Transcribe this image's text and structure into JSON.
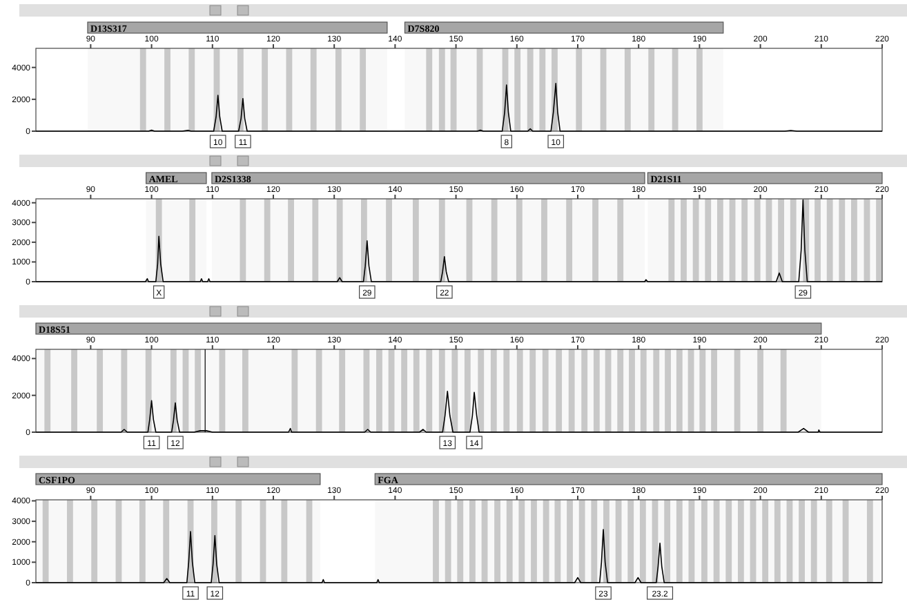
{
  "chart_data": [
    {
      "type": "line",
      "xlim": [
        81,
        220
      ],
      "xticks": [
        90,
        100,
        110,
        120,
        130,
        140,
        150,
        160,
        170,
        180,
        190,
        200,
        210,
        220
      ],
      "ylim": [
        0,
        5200
      ],
      "yticks": [
        0,
        2000,
        4000
      ],
      "grid": false,
      "marker": "none",
      "line_style": "solid",
      "series": [
        {
          "color": "#000000",
          "x": [
            81,
            88,
            99.5,
            100,
            100.5,
            105,
            106,
            106.5,
            110.2,
            110.6,
            110.9,
            111.2,
            111.6,
            114.3,
            114.7,
            115.0,
            115.3,
            115.7,
            125,
            140,
            153.5,
            154,
            154.5,
            157.6,
            158,
            158.3,
            158.6,
            159,
            161.8,
            162.2,
            162.6,
            165.6,
            166,
            166.4,
            166.7,
            167.1,
            204,
            205,
            206,
            220
          ],
          "values": [
            0,
            0,
            0,
            60,
            0,
            0,
            50,
            0,
            0,
            900,
            2250,
            900,
            0,
            0,
            800,
            2050,
            800,
            0,
            0,
            0,
            0,
            60,
            0,
            0,
            1200,
            2900,
            1200,
            0,
            0,
            150,
            0,
            0,
            1200,
            3000,
            1200,
            0,
            0,
            40,
            0,
            0
          ]
        }
      ],
      "bands": [
        {
          "axis": "x",
          "from": 89.5,
          "to": 138.7,
          "label": "D13S317",
          "color": "#a6a6a6"
        },
        {
          "axis": "x",
          "from": 141.6,
          "to": 193.9,
          "label": "D7S820",
          "color": "#a6a6a6"
        },
        {
          "axis": "x",
          "from": 98.1,
          "to": 99.1,
          "color": "#c8c8c8"
        },
        {
          "axis": "x",
          "from": 102.1,
          "to": 103.1,
          "color": "#c8c8c8"
        },
        {
          "axis": "x",
          "from": 106.1,
          "to": 107.1,
          "color": "#c8c8c8"
        },
        {
          "axis": "x",
          "from": 110.2,
          "to": 111.2,
          "color": "#c8c8c8"
        },
        {
          "axis": "x",
          "from": 114.1,
          "to": 115.1,
          "color": "#c8c8c8"
        },
        {
          "axis": "x",
          "from": 118.1,
          "to": 119.1,
          "color": "#c8c8c8"
        },
        {
          "axis": "x",
          "from": 122.1,
          "to": 123.1,
          "color": "#c8c8c8"
        },
        {
          "axis": "x",
          "from": 126.1,
          "to": 127.1,
          "color": "#c8c8c8"
        },
        {
          "axis": "x",
          "from": 130.2,
          "to": 131.2,
          "color": "#c8c8c8"
        },
        {
          "axis": "x",
          "from": 134.2,
          "to": 135.2,
          "color": "#c8c8c8"
        },
        {
          "axis": "x",
          "from": 145.1,
          "to": 146.1,
          "color": "#c8c8c8"
        },
        {
          "axis": "x",
          "from": 147.2,
          "to": 148.2,
          "color": "#c8c8c8"
        },
        {
          "axis": "x",
          "from": 149.1,
          "to": 150.1,
          "color": "#c8c8c8"
        },
        {
          "axis": "x",
          "from": 153.4,
          "to": 154.4,
          "color": "#c8c8c8"
        },
        {
          "axis": "x",
          "from": 157.6,
          "to": 158.6,
          "color": "#c8c8c8"
        },
        {
          "axis": "x",
          "from": 159.6,
          "to": 160.6,
          "color": "#c8c8c8"
        },
        {
          "axis": "x",
          "from": 161.7,
          "to": 162.7,
          "color": "#c8c8c8"
        },
        {
          "axis": "x",
          "from": 163.7,
          "to": 164.7,
          "color": "#c8c8c8"
        },
        {
          "axis": "x",
          "from": 165.7,
          "to": 166.7,
          "color": "#c8c8c8"
        },
        {
          "axis": "x",
          "from": 169.7,
          "to": 170.7,
          "color": "#c8c8c8"
        },
        {
          "axis": "x",
          "from": 173.7,
          "to": 174.7,
          "color": "#c8c8c8"
        },
        {
          "axis": "x",
          "from": 177.7,
          "to": 178.7,
          "color": "#c8c8c8"
        },
        {
          "axis": "x",
          "from": 181.6,
          "to": 182.6,
          "color": "#c8c8c8"
        },
        {
          "axis": "x",
          "from": 185.5,
          "to": 186.5,
          "color": "#c8c8c8"
        },
        {
          "axis": "x",
          "from": 189.5,
          "to": 190.5,
          "color": "#c8c8c8"
        }
      ],
      "annotations": [
        {
          "text": "10",
          "x": 110.9,
          "y": 0
        },
        {
          "text": "11",
          "x": 115.0,
          "y": 0
        },
        {
          "text": "8",
          "x": 158.3,
          "y": 0
        },
        {
          "text": "10",
          "x": 166.4,
          "y": 0
        }
      ]
    },
    {
      "type": "line",
      "xlim": [
        81,
        220
      ],
      "xticks": [
        90,
        100,
        110,
        120,
        130,
        140,
        150,
        160,
        170,
        180,
        190,
        200,
        210,
        220
      ],
      "ylim": [
        0,
        4200
      ],
      "yticks": [
        0,
        1000,
        2000,
        3000,
        4000
      ],
      "grid": false,
      "marker": "none",
      "line_style": "solid",
      "series": [
        {
          "color": "#000000",
          "x": [
            81,
            99,
            99.3,
            99.5,
            100.7,
            101.0,
            101.2,
            101.5,
            101.9,
            108,
            108.2,
            108.4,
            109.2,
            109.4,
            109.6,
            130.5,
            130.9,
            131.3,
            134.8,
            135.1,
            135.4,
            135.7,
            136.1,
            147.5,
            147.8,
            148.1,
            148.4,
            148.8,
            181,
            181.2,
            181.5,
            202.6,
            203.1,
            203.6,
            206.3,
            206.7,
            207,
            207.3,
            207.7,
            220
          ],
          "values": [
            0,
            0,
            150,
            0,
            0,
            900,
            2300,
            900,
            0,
            0,
            150,
            0,
            0,
            150,
            0,
            0,
            200,
            0,
            0,
            800,
            2070,
            800,
            0,
            0,
            500,
            1270,
            500,
            0,
            0,
            100,
            0,
            0,
            440,
            0,
            0,
            1600,
            4150,
            1600,
            0,
            0
          ]
        }
      ],
      "bands": [
        {
          "axis": "x",
          "from": 99.1,
          "to": 109,
          "label": "AMEL",
          "color": "#a6a6a6"
        },
        {
          "axis": "x",
          "from": 109.9,
          "to": 181,
          "label": "D2S1338",
          "color": "#a6a6a6"
        },
        {
          "axis": "x",
          "from": 181.5,
          "to": 220,
          "label": "D21S11",
          "color": "#a6a6a6"
        },
        {
          "axis": "x",
          "from": 100.7,
          "to": 101.7,
          "color": "#c8c8c8"
        },
        {
          "axis": "x",
          "from": 106.2,
          "to": 107.2,
          "color": "#c8c8c8"
        },
        {
          "axis": "x",
          "from": 114.5,
          "to": 115.5,
          "color": "#c8c8c8"
        },
        {
          "axis": "x",
          "from": 118.5,
          "to": 119.5,
          "color": "#c8c8c8"
        },
        {
          "axis": "x",
          "from": 122.4,
          "to": 123.4,
          "color": "#c8c8c8"
        },
        {
          "axis": "x",
          "from": 126.4,
          "to": 127.4,
          "color": "#c8c8c8"
        },
        {
          "axis": "x",
          "from": 130.4,
          "to": 131.4,
          "color": "#c8c8c8"
        },
        {
          "axis": "x",
          "from": 134.4,
          "to": 135.4,
          "color": "#c8c8c8"
        },
        {
          "axis": "x",
          "from": 138.5,
          "to": 139.5,
          "color": "#c8c8c8"
        },
        {
          "axis": "x",
          "from": 142.9,
          "to": 143.9,
          "color": "#c8c8c8"
        },
        {
          "axis": "x",
          "from": 147.2,
          "to": 148.2,
          "color": "#c8c8c8"
        },
        {
          "axis": "x",
          "from": 151.7,
          "to": 152.7,
          "color": "#c8c8c8"
        },
        {
          "axis": "x",
          "from": 155.8,
          "to": 156.8,
          "color": "#c8c8c8"
        },
        {
          "axis": "x",
          "from": 159.9,
          "to": 160.9,
          "color": "#c8c8c8"
        },
        {
          "axis": "x",
          "from": 164,
          "to": 165,
          "color": "#c8c8c8"
        },
        {
          "axis": "x",
          "from": 168.1,
          "to": 169.1,
          "color": "#c8c8c8"
        },
        {
          "axis": "x",
          "from": 172.4,
          "to": 173.4,
          "color": "#c8c8c8"
        },
        {
          "axis": "x",
          "from": 176.5,
          "to": 177.5,
          "color": "#c8c8c8"
        },
        {
          "axis": "x",
          "from": 184.9,
          "to": 185.9,
          "color": "#c8c8c8"
        },
        {
          "axis": "x",
          "from": 186.9,
          "to": 187.9,
          "color": "#c8c8c8"
        },
        {
          "axis": "x",
          "from": 188.9,
          "to": 189.9,
          "color": "#c8c8c8"
        },
        {
          "axis": "x",
          "from": 190.9,
          "to": 191.9,
          "color": "#c8c8c8"
        },
        {
          "axis": "x",
          "from": 192.9,
          "to": 193.9,
          "color": "#c8c8c8"
        },
        {
          "axis": "x",
          "from": 194.9,
          "to": 195.9,
          "color": "#c8c8c8"
        },
        {
          "axis": "x",
          "from": 196.9,
          "to": 197.9,
          "color": "#c8c8c8"
        },
        {
          "axis": "x",
          "from": 199,
          "to": 200,
          "color": "#c8c8c8"
        },
        {
          "axis": "x",
          "from": 200.9,
          "to": 201.9,
          "color": "#c8c8c8"
        },
        {
          "axis": "x",
          "from": 202.9,
          "to": 203.9,
          "color": "#c8c8c8"
        },
        {
          "axis": "x",
          "from": 204.9,
          "to": 205.9,
          "color": "#c8c8c8"
        },
        {
          "axis": "x",
          "from": 207,
          "to": 208,
          "color": "#c8c8c8"
        },
        {
          "axis": "x",
          "from": 208.9,
          "to": 209.9,
          "color": "#c8c8c8"
        },
        {
          "axis": "x",
          "from": 210.9,
          "to": 211.9,
          "color": "#c8c8c8"
        },
        {
          "axis": "x",
          "from": 212.9,
          "to": 213.9,
          "color": "#c8c8c8"
        },
        {
          "axis": "x",
          "from": 214.9,
          "to": 215.9,
          "color": "#c8c8c8"
        },
        {
          "axis": "x",
          "from": 217,
          "to": 218,
          "color": "#c8c8c8"
        },
        {
          "axis": "x",
          "from": 219,
          "to": 220,
          "color": "#c8c8c8"
        }
      ],
      "annotations": [
        {
          "text": "X",
          "x": 101.2,
          "y": 0
        },
        {
          "text": "29",
          "x": 135.4,
          "y": 0
        },
        {
          "text": "22",
          "x": 148.1,
          "y": 0
        },
        {
          "text": "29",
          "x": 207,
          "y": 0
        }
      ]
    },
    {
      "type": "line",
      "xlim": [
        81,
        220
      ],
      "xticks": [
        90,
        100,
        110,
        120,
        130,
        140,
        150,
        160,
        170,
        180,
        190,
        200,
        210,
        220
      ],
      "ylim": [
        0,
        4500
      ],
      "yticks": [
        0,
        2000,
        4000
      ],
      "grid": false,
      "marker": "none",
      "line_style": "solid",
      "series": [
        {
          "color": "#000000",
          "x": [
            81,
            95,
            95.5,
            96,
            99.4,
            99.7,
            100,
            100.3,
            100.7,
            103.3,
            103.6,
            103.9,
            104.2,
            104.6,
            107,
            108,
            109,
            110,
            122.5,
            122.8,
            123,
            135,
            135.5,
            136,
            144,
            144.6,
            145.1,
            147.8,
            148.2,
            148.6,
            149,
            149.5,
            152.3,
            152.7,
            153,
            153.4,
            153.8,
            206.2,
            207.1,
            207.9,
            209.5,
            209.6,
            209.8,
            220
          ],
          "values": [
            0,
            0,
            150,
            0,
            0,
            700,
            1710,
            700,
            0,
            0,
            650,
            1590,
            650,
            0,
            0,
            80,
            80,
            0,
            0,
            200,
            0,
            0,
            150,
            0,
            0,
            150,
            0,
            0,
            900,
            2220,
            900,
            0,
            0,
            900,
            2160,
            900,
            0,
            0,
            200,
            0,
            0,
            120,
            0,
            0
          ]
        }
      ],
      "ref_lines": [
        {
          "axis": "x",
          "value": 108.8,
          "color": "#000000"
        }
      ],
      "bands": [
        {
          "axis": "x",
          "from": 81,
          "to": 210,
          "label": "D18S51",
          "color": "#a6a6a6"
        },
        {
          "axis": "x",
          "from": 82.4,
          "to": 83.4,
          "color": "#c8c8c8"
        },
        {
          "axis": "x",
          "from": 86.8,
          "to": 87.8,
          "color": "#c8c8c8"
        },
        {
          "axis": "x",
          "from": 91,
          "to": 92,
          "color": "#c8c8c8"
        },
        {
          "axis": "x",
          "from": 95,
          "to": 96,
          "color": "#c8c8c8"
        },
        {
          "axis": "x",
          "from": 99,
          "to": 100,
          "color": "#c8c8c8"
        },
        {
          "axis": "x",
          "from": 103.1,
          "to": 104.1,
          "color": "#c8c8c8"
        },
        {
          "axis": "x",
          "from": 105.1,
          "to": 106.1,
          "color": "#c8c8c8"
        },
        {
          "axis": "x",
          "from": 107.1,
          "to": 108.1,
          "color": "#c8c8c8"
        },
        {
          "axis": "x",
          "from": 111.1,
          "to": 112.1,
          "color": "#c8c8c8"
        },
        {
          "axis": "x",
          "from": 114.9,
          "to": 115.9,
          "color": "#c8c8c8"
        },
        {
          "axis": "x",
          "from": 123,
          "to": 124,
          "color": "#c8c8c8"
        },
        {
          "axis": "x",
          "from": 127,
          "to": 128,
          "color": "#c8c8c8"
        },
        {
          "axis": "x",
          "from": 130.8,
          "to": 131.8,
          "color": "#c8c8c8"
        },
        {
          "axis": "x",
          "from": 134.8,
          "to": 135.8,
          "color": "#c8c8c8"
        },
        {
          "axis": "x",
          "from": 136.9,
          "to": 137.9,
          "color": "#c8c8c8"
        },
        {
          "axis": "x",
          "from": 138.9,
          "to": 139.9,
          "color": "#c8c8c8"
        },
        {
          "axis": "x",
          "from": 141,
          "to": 142,
          "color": "#c8c8c8"
        },
        {
          "axis": "x",
          "from": 143,
          "to": 144,
          "color": "#c8c8c8"
        },
        {
          "axis": "x",
          "from": 145.1,
          "to": 146.1,
          "color": "#c8c8c8"
        },
        {
          "axis": "x",
          "from": 147.2,
          "to": 148.2,
          "color": "#c8c8c8"
        },
        {
          "axis": "x",
          "from": 149.3,
          "to": 150.3,
          "color": "#c8c8c8"
        },
        {
          "axis": "x",
          "from": 151.4,
          "to": 152.4,
          "color": "#c8c8c8"
        },
        {
          "axis": "x",
          "from": 153.6,
          "to": 154.6,
          "color": "#c8c8c8"
        },
        {
          "axis": "x",
          "from": 155.7,
          "to": 156.7,
          "color": "#c8c8c8"
        },
        {
          "axis": "x",
          "from": 157.8,
          "to": 158.8,
          "color": "#c8c8c8"
        },
        {
          "axis": "x",
          "from": 160,
          "to": 161,
          "color": "#c8c8c8"
        },
        {
          "axis": "x",
          "from": 162.1,
          "to": 163.1,
          "color": "#c8c8c8"
        },
        {
          "axis": "x",
          "from": 164.2,
          "to": 165.2,
          "color": "#c8c8c8"
        },
        {
          "axis": "x",
          "from": 166.4,
          "to": 167.4,
          "color": "#c8c8c8"
        },
        {
          "axis": "x",
          "from": 168.5,
          "to": 169.5,
          "color": "#c8c8c8"
        },
        {
          "axis": "x",
          "from": 170.6,
          "to": 171.6,
          "color": "#c8c8c8"
        },
        {
          "axis": "x",
          "from": 172.6,
          "to": 173.6,
          "color": "#c8c8c8"
        },
        {
          "axis": "x",
          "from": 174.5,
          "to": 175.5,
          "color": "#c8c8c8"
        },
        {
          "axis": "x",
          "from": 176.5,
          "to": 177.5,
          "color": "#c8c8c8"
        },
        {
          "axis": "x",
          "from": 178.4,
          "to": 179.4,
          "color": "#c8c8c8"
        },
        {
          "axis": "x",
          "from": 180.3,
          "to": 181.3,
          "color": "#c8c8c8"
        },
        {
          "axis": "x",
          "from": 182.4,
          "to": 183.4,
          "color": "#c8c8c8"
        },
        {
          "axis": "x",
          "from": 184.3,
          "to": 185.3,
          "color": "#c8c8c8"
        },
        {
          "axis": "x",
          "from": 186.2,
          "to": 187.2,
          "color": "#c8c8c8"
        },
        {
          "axis": "x",
          "from": 188.1,
          "to": 189.1,
          "color": "#c8c8c8"
        },
        {
          "axis": "x",
          "from": 190,
          "to": 191,
          "color": "#c8c8c8"
        },
        {
          "axis": "x",
          "from": 191.9,
          "to": 192.9,
          "color": "#c8c8c8"
        },
        {
          "axis": "x",
          "from": 195.7,
          "to": 196.7,
          "color": "#c8c8c8"
        },
        {
          "axis": "x",
          "from": 199.5,
          "to": 200.5,
          "color": "#c8c8c8"
        },
        {
          "axis": "x",
          "from": 203.3,
          "to": 204.3,
          "color": "#c8c8c8"
        }
      ],
      "annotations": [
        {
          "text": "11",
          "x": 100,
          "y": 0
        },
        {
          "text": "12",
          "x": 103.9,
          "y": 0
        },
        {
          "text": "13",
          "x": 148.6,
          "y": 0
        },
        {
          "text": "14",
          "x": 153,
          "y": 0
        }
      ]
    },
    {
      "type": "line",
      "xlim": [
        81,
        220
      ],
      "xticks": [
        90,
        100,
        110,
        120,
        130,
        140,
        150,
        160,
        170,
        180,
        190,
        200,
        210,
        220
      ],
      "ylim": [
        0,
        4050
      ],
      "yticks": [
        0,
        1000,
        2000,
        3000,
        4000
      ],
      "grid": false,
      "marker": "none",
      "line_style": "solid",
      "series": [
        {
          "color": "#000000",
          "x": [
            81,
            102,
            102.5,
            103,
            105.8,
            106.1,
            106.4,
            106.7,
            107.1,
            109.8,
            110.1,
            110.4,
            110.7,
            111.1,
            128,
            128.2,
            128.4,
            137,
            137.2,
            137.4,
            169.5,
            170,
            170.5,
            173.6,
            173.9,
            174.2,
            174.5,
            174.9,
            179.4,
            179.9,
            180.4,
            182.9,
            183.2,
            183.5,
            183.8,
            184.2,
            220
          ],
          "values": [
            0,
            0,
            200,
            0,
            0,
            1000,
            2500,
            1000,
            0,
            0,
            900,
            2300,
            900,
            0,
            0,
            150,
            0,
            0,
            150,
            0,
            0,
            250,
            0,
            0,
            1000,
            2600,
            1000,
            0,
            0,
            250,
            0,
            0,
            800,
            1930,
            800,
            0,
            0
          ]
        }
      ],
      "bands": [
        {
          "axis": "x",
          "from": 81,
          "to": 127.7,
          "label": "CSF1PO",
          "color": "#a6a6a6"
        },
        {
          "axis": "x",
          "from": 136.7,
          "to": 220,
          "label": "FGA",
          "color": "#a6a6a6"
        },
        {
          "axis": "x",
          "from": 82.1,
          "to": 83.1,
          "color": "#c8c8c8"
        },
        {
          "axis": "x",
          "from": 86.1,
          "to": 87.1,
          "color": "#c8c8c8"
        },
        {
          "axis": "x",
          "from": 90.1,
          "to": 91.1,
          "color": "#c8c8c8"
        },
        {
          "axis": "x",
          "from": 94.1,
          "to": 95.1,
          "color": "#c8c8c8"
        },
        {
          "axis": "x",
          "from": 98,
          "to": 99,
          "color": "#c8c8c8"
        },
        {
          "axis": "x",
          "from": 101.9,
          "to": 102.9,
          "color": "#c8c8c8"
        },
        {
          "axis": "x",
          "from": 105.9,
          "to": 106.9,
          "color": "#c8c8c8"
        },
        {
          "axis": "x",
          "from": 109.8,
          "to": 110.8,
          "color": "#c8c8c8"
        },
        {
          "axis": "x",
          "from": 113.8,
          "to": 114.8,
          "color": "#c8c8c8"
        },
        {
          "axis": "x",
          "from": 117.8,
          "to": 118.8,
          "color": "#c8c8c8"
        },
        {
          "axis": "x",
          "from": 121.3,
          "to": 122.3,
          "color": "#c8c8c8"
        },
        {
          "axis": "x",
          "from": 125.4,
          "to": 126.4,
          "color": "#c8c8c8"
        },
        {
          "axis": "x",
          "from": 146.2,
          "to": 147.2,
          "color": "#c8c8c8"
        },
        {
          "axis": "x",
          "from": 148.2,
          "to": 149.2,
          "color": "#c8c8c8"
        },
        {
          "axis": "x",
          "from": 150.2,
          "to": 151.2,
          "color": "#c8c8c8"
        },
        {
          "axis": "x",
          "from": 152.2,
          "to": 153.2,
          "color": "#c8c8c8"
        },
        {
          "axis": "x",
          "from": 154.2,
          "to": 155.2,
          "color": "#c8c8c8"
        },
        {
          "axis": "x",
          "from": 156.3,
          "to": 157.3,
          "color": "#c8c8c8"
        },
        {
          "axis": "x",
          "from": 158.3,
          "to": 159.3,
          "color": "#c8c8c8"
        },
        {
          "axis": "x",
          "from": 160.3,
          "to": 161.3,
          "color": "#c8c8c8"
        },
        {
          "axis": "x",
          "from": 162.3,
          "to": 163.3,
          "color": "#c8c8c8"
        },
        {
          "axis": "x",
          "from": 164.3,
          "to": 165.3,
          "color": "#c8c8c8"
        },
        {
          "axis": "x",
          "from": 166.2,
          "to": 167.2,
          "color": "#c8c8c8"
        },
        {
          "axis": "x",
          "from": 168.2,
          "to": 169.2,
          "color": "#c8c8c8"
        },
        {
          "axis": "x",
          "from": 170.2,
          "to": 171.2,
          "color": "#c8c8c8"
        },
        {
          "axis": "x",
          "from": 172.2,
          "to": 173.2,
          "color": "#c8c8c8"
        },
        {
          "axis": "x",
          "from": 174.2,
          "to": 175.2,
          "color": "#c8c8c8"
        },
        {
          "axis": "x",
          "from": 176.2,
          "to": 177.2,
          "color": "#c8c8c8"
        },
        {
          "axis": "x",
          "from": 178.2,
          "to": 179.2,
          "color": "#c8c8c8"
        },
        {
          "axis": "x",
          "from": 180.2,
          "to": 181.2,
          "color": "#c8c8c8"
        },
        {
          "axis": "x",
          "from": 182.2,
          "to": 183.2,
          "color": "#c8c8c8"
        },
        {
          "axis": "x",
          "from": 184.2,
          "to": 185.2,
          "color": "#c8c8c8"
        },
        {
          "axis": "x",
          "from": 186.2,
          "to": 187.2,
          "color": "#c8c8c8"
        },
        {
          "axis": "x",
          "from": 188.2,
          "to": 189.2,
          "color": "#c8c8c8"
        },
        {
          "axis": "x",
          "from": 190.3,
          "to": 191.3,
          "color": "#c8c8c8"
        },
        {
          "axis": "x",
          "from": 192.3,
          "to": 193.3,
          "color": "#c8c8c8"
        },
        {
          "axis": "x",
          "from": 194.3,
          "to": 195.3,
          "color": "#c8c8c8"
        },
        {
          "axis": "x",
          "from": 196.3,
          "to": 197.3,
          "color": "#c8c8c8"
        },
        {
          "axis": "x",
          "from": 198.3,
          "to": 199.3,
          "color": "#c8c8c8"
        },
        {
          "axis": "x",
          "from": 200.3,
          "to": 201.3,
          "color": "#c8c8c8"
        },
        {
          "axis": "x",
          "from": 202.3,
          "to": 203.3,
          "color": "#c8c8c8"
        },
        {
          "axis": "x",
          "from": 204.3,
          "to": 205.3,
          "color": "#c8c8c8"
        },
        {
          "axis": "x",
          "from": 206.3,
          "to": 207.3,
          "color": "#c8c8c8"
        },
        {
          "axis": "x",
          "from": 208.3,
          "to": 209.3,
          "color": "#c8c8c8"
        },
        {
          "axis": "x",
          "from": 210.8,
          "to": 211.8,
          "color": "#c8c8c8"
        },
        {
          "axis": "x",
          "from": 213.5,
          "to": 214.5,
          "color": "#c8c8c8"
        },
        {
          "axis": "x",
          "from": 217.5,
          "to": 218.5,
          "color": "#c8c8c8"
        }
      ],
      "annotations": [
        {
          "text": "11",
          "x": 106.4,
          "y": 0
        },
        {
          "text": "12",
          "x": 110.4,
          "y": 0
        },
        {
          "text": "23",
          "x": 174.2,
          "y": 0
        },
        {
          "text": "23.2",
          "x": 183.5,
          "y": 0
        }
      ]
    }
  ]
}
